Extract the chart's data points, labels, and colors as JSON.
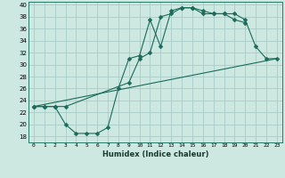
{
  "xlabel": "Humidex (Indice chaleur)",
  "bg_color": "#cce8e0",
  "grid_color": "#a8ccc8",
  "line_color": "#1a6b5a",
  "xlim": [
    -0.5,
    23.5
  ],
  "ylim": [
    17,
    40.5
  ],
  "yticks": [
    18,
    20,
    22,
    24,
    26,
    28,
    30,
    32,
    34,
    36,
    38,
    40
  ],
  "xticks": [
    0,
    1,
    2,
    3,
    4,
    5,
    6,
    7,
    8,
    9,
    10,
    11,
    12,
    13,
    14,
    15,
    16,
    17,
    18,
    19,
    20,
    21,
    22,
    23
  ],
  "line1_x": [
    0,
    1,
    2,
    3,
    4,
    5,
    6,
    7,
    8,
    9,
    10,
    11,
    12,
    13,
    14,
    15,
    16,
    17,
    18,
    19,
    20
  ],
  "line1_y": [
    23,
    23,
    23,
    20,
    18.5,
    18.5,
    18.5,
    19.5,
    26,
    31,
    31.5,
    37.5,
    33,
    39,
    39.5,
    39.5,
    38.5,
    38.5,
    38.5,
    37.5,
    37.0
  ],
  "line2_x": [
    0,
    1,
    2,
    3,
    9,
    10,
    11,
    12,
    13,
    14,
    15,
    16,
    17,
    18,
    19,
    20,
    21,
    22,
    23
  ],
  "line2_y": [
    23,
    23,
    23,
    23,
    27,
    31,
    32,
    38,
    38.5,
    39.5,
    39.5,
    39.0,
    38.5,
    38.5,
    38.5,
    37.5,
    33,
    31,
    31
  ],
  "line3_x": [
    0,
    23
  ],
  "line3_y": [
    23,
    31
  ]
}
